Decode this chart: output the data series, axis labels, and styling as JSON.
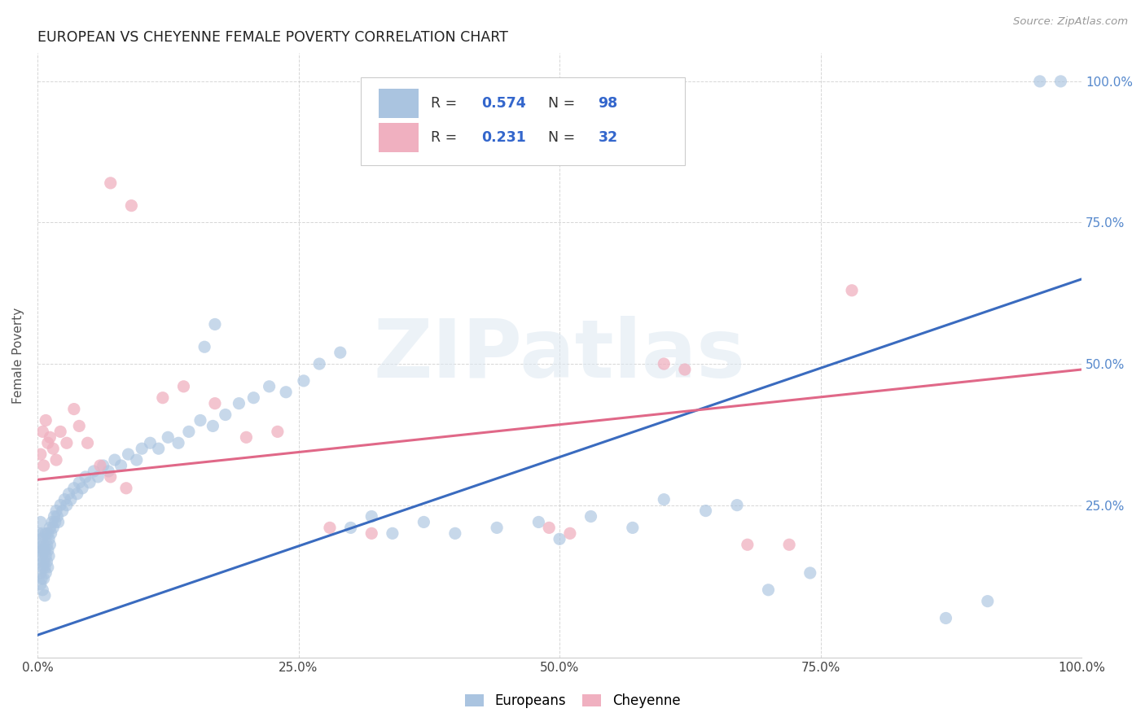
{
  "title": "EUROPEAN VS CHEYENNE FEMALE POVERTY CORRELATION CHART",
  "source": "Source: ZipAtlas.com",
  "ylabel": "Female Poverty",
  "xlim": [
    0,
    1
  ],
  "ylim": [
    -0.02,
    1.05
  ],
  "xtick_labels": [
    "0.0%",
    "25.0%",
    "50.0%",
    "75.0%",
    "100.0%"
  ],
  "xtick_vals": [
    0,
    0.25,
    0.5,
    0.75,
    1.0
  ],
  "ytick_labels": [
    "25.0%",
    "50.0%",
    "75.0%",
    "100.0%"
  ],
  "ytick_vals": [
    0.25,
    0.5,
    0.75,
    1.0
  ],
  "background_color": "#ffffff",
  "grid_color": "#cccccc",
  "blue_color": "#aac4e0",
  "pink_color": "#f0b0c0",
  "blue_line_color": "#3a6bbf",
  "pink_line_color": "#e06888",
  "watermark": "ZIPatlas",
  "blue_scatter": [
    [
      0.001,
      0.2
    ],
    [
      0.002,
      0.18
    ],
    [
      0.002,
      0.15
    ],
    [
      0.003,
      0.22
    ],
    [
      0.003,
      0.17
    ],
    [
      0.003,
      0.13
    ],
    [
      0.003,
      0.11
    ],
    [
      0.004,
      0.19
    ],
    [
      0.004,
      0.16
    ],
    [
      0.004,
      0.12
    ],
    [
      0.005,
      0.2
    ],
    [
      0.005,
      0.17
    ],
    [
      0.005,
      0.14
    ],
    [
      0.005,
      0.1
    ],
    [
      0.006,
      0.18
    ],
    [
      0.006,
      0.15
    ],
    [
      0.006,
      0.12
    ],
    [
      0.007,
      0.17
    ],
    [
      0.007,
      0.14
    ],
    [
      0.007,
      0.09
    ],
    [
      0.008,
      0.2
    ],
    [
      0.008,
      0.16
    ],
    [
      0.008,
      0.13
    ],
    [
      0.009,
      0.18
    ],
    [
      0.009,
      0.15
    ],
    [
      0.01,
      0.2
    ],
    [
      0.01,
      0.17
    ],
    [
      0.01,
      0.14
    ],
    [
      0.011,
      0.19
    ],
    [
      0.011,
      0.16
    ],
    [
      0.012,
      0.21
    ],
    [
      0.012,
      0.18
    ],
    [
      0.013,
      0.2
    ],
    [
      0.014,
      0.22
    ],
    [
      0.015,
      0.21
    ],
    [
      0.016,
      0.23
    ],
    [
      0.017,
      0.22
    ],
    [
      0.018,
      0.24
    ],
    [
      0.019,
      0.23
    ],
    [
      0.02,
      0.22
    ],
    [
      0.022,
      0.25
    ],
    [
      0.024,
      0.24
    ],
    [
      0.026,
      0.26
    ],
    [
      0.028,
      0.25
    ],
    [
      0.03,
      0.27
    ],
    [
      0.032,
      0.26
    ],
    [
      0.035,
      0.28
    ],
    [
      0.038,
      0.27
    ],
    [
      0.04,
      0.29
    ],
    [
      0.043,
      0.28
    ],
    [
      0.046,
      0.3
    ],
    [
      0.05,
      0.29
    ],
    [
      0.054,
      0.31
    ],
    [
      0.058,
      0.3
    ],
    [
      0.063,
      0.32
    ],
    [
      0.068,
      0.31
    ],
    [
      0.074,
      0.33
    ],
    [
      0.08,
      0.32
    ],
    [
      0.087,
      0.34
    ],
    [
      0.095,
      0.33
    ],
    [
      0.1,
      0.35
    ],
    [
      0.108,
      0.36
    ],
    [
      0.116,
      0.35
    ],
    [
      0.125,
      0.37
    ],
    [
      0.135,
      0.36
    ],
    [
      0.145,
      0.38
    ],
    [
      0.156,
      0.4
    ],
    [
      0.168,
      0.39
    ],
    [
      0.18,
      0.41
    ],
    [
      0.193,
      0.43
    ],
    [
      0.207,
      0.44
    ],
    [
      0.222,
      0.46
    ],
    [
      0.238,
      0.45
    ],
    [
      0.255,
      0.47
    ],
    [
      0.16,
      0.53
    ],
    [
      0.17,
      0.57
    ],
    [
      0.27,
      0.5
    ],
    [
      0.29,
      0.52
    ],
    [
      0.3,
      0.21
    ],
    [
      0.32,
      0.23
    ],
    [
      0.34,
      0.2
    ],
    [
      0.37,
      0.22
    ],
    [
      0.4,
      0.2
    ],
    [
      0.44,
      0.21
    ],
    [
      0.48,
      0.22
    ],
    [
      0.5,
      0.19
    ],
    [
      0.53,
      0.23
    ],
    [
      0.57,
      0.21
    ],
    [
      0.6,
      0.26
    ],
    [
      0.64,
      0.24
    ],
    [
      0.67,
      0.25
    ],
    [
      0.7,
      0.1
    ],
    [
      0.74,
      0.13
    ],
    [
      0.87,
      0.05
    ],
    [
      0.91,
      0.08
    ],
    [
      0.96,
      1.0
    ],
    [
      0.98,
      1.0
    ]
  ],
  "pink_scatter": [
    [
      0.003,
      0.34
    ],
    [
      0.005,
      0.38
    ],
    [
      0.006,
      0.32
    ],
    [
      0.008,
      0.4
    ],
    [
      0.01,
      0.36
    ],
    [
      0.012,
      0.37
    ],
    [
      0.015,
      0.35
    ],
    [
      0.018,
      0.33
    ],
    [
      0.022,
      0.38
    ],
    [
      0.028,
      0.36
    ],
    [
      0.035,
      0.42
    ],
    [
      0.04,
      0.39
    ],
    [
      0.048,
      0.36
    ],
    [
      0.06,
      0.32
    ],
    [
      0.07,
      0.3
    ],
    [
      0.085,
      0.28
    ],
    [
      0.07,
      0.82
    ],
    [
      0.09,
      0.78
    ],
    [
      0.12,
      0.44
    ],
    [
      0.14,
      0.46
    ],
    [
      0.17,
      0.43
    ],
    [
      0.2,
      0.37
    ],
    [
      0.23,
      0.38
    ],
    [
      0.28,
      0.21
    ],
    [
      0.32,
      0.2
    ],
    [
      0.49,
      0.21
    ],
    [
      0.51,
      0.2
    ],
    [
      0.6,
      0.5
    ],
    [
      0.62,
      0.49
    ],
    [
      0.68,
      0.18
    ],
    [
      0.72,
      0.18
    ],
    [
      0.78,
      0.63
    ]
  ],
  "blue_line_x": [
    0.0,
    1.0
  ],
  "blue_line_y": [
    0.02,
    0.65
  ],
  "pink_line_x": [
    0.0,
    1.0
  ],
  "pink_line_y": [
    0.295,
    0.49
  ]
}
